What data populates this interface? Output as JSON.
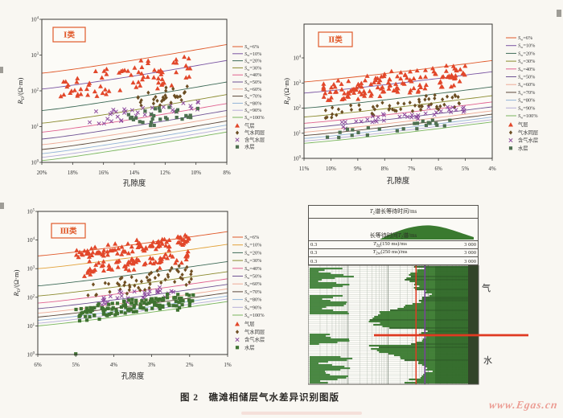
{
  "figure": {
    "caption": "图 2　礁滩相储层气水差异识别图版",
    "watermark": "www.Egas.cn",
    "paper_color": "#f9f7f2",
    "accent_color": "#e0592a"
  },
  "chart_data": [
    {
      "type": "scatter",
      "panel": "I",
      "class_label": "Ⅰ类",
      "x_label": "孔隙度",
      "y_label": "RD/(Ω·m)",
      "x_ticks": [
        "20%",
        "18%",
        "16%",
        "14%",
        "12%",
        "10%",
        "8%"
      ],
      "x_left_pct": 20,
      "x_right_pct": 8,
      "y_tick_exponents": [
        0,
        1,
        2,
        3,
        4
      ],
      "y_axis_type": "log",
      "model": {
        "base_log_r": 0.05,
        "rise_log": 0.8,
        "saturation_exponent": 2,
        "curvature": 1.12
      },
      "sw_curves": [
        {
          "sw": 6,
          "label": "Sw=6%",
          "color": "#e0592a"
        },
        {
          "sw": 10,
          "label": "Sw=10%",
          "color": "#7a55a2"
        },
        {
          "sw": 20,
          "label": "Sw=20%",
          "color": "#3f6b58"
        },
        {
          "sw": 30,
          "label": "Sw=30%",
          "color": "#8a8a2e"
        },
        {
          "sw": 40,
          "label": "Sw=40%",
          "color": "#e0618f"
        },
        {
          "sw": 50,
          "label": "Sw=50%",
          "color": "#6f5394"
        },
        {
          "sw": 60,
          "label": "Sw=60%",
          "color": "#edaa96"
        },
        {
          "sw": 70,
          "label": "Sw=70%",
          "color": "#5a473a"
        },
        {
          "sw": 80,
          "label": "Sw=80%",
          "color": "#92b4d8"
        },
        {
          "sw": 90,
          "label": "Sw=90%",
          "color": "#b5add8"
        },
        {
          "sw": 100,
          "label": "Sw=100%",
          "color": "#79b65e"
        }
      ],
      "clusters": [
        {
          "label": "气层",
          "marker": "triangle",
          "color": "#e2472a",
          "count": 78,
          "phi_range": [
            10.3,
            18.8
          ],
          "sw_eq_range": [
            7,
            16
          ]
        },
        {
          "label": "气水同层",
          "marker": "diamond",
          "color": "#6b4e23",
          "count": 32,
          "phi_range": [
            10.0,
            13.9
          ],
          "sw_eq_range": [
            18,
            28
          ]
        },
        {
          "label": "含气水层",
          "marker": "cross",
          "color": "#8d4a9e",
          "count": 34,
          "phi_range": [
            9.8,
            16.9
          ],
          "sw_eq_range": [
            26,
            42
          ]
        },
        {
          "label": "水层",
          "marker": "square",
          "color": "#4e7050",
          "count": 30,
          "phi_range": [
            9.8,
            14.6
          ],
          "sw_eq_range": [
            32,
            52
          ]
        }
      ],
      "extra_points": []
    },
    {
      "type": "scatter",
      "panel": "II",
      "class_label": "Ⅱ类",
      "x_label": "孔隙度",
      "y_label": "RD/(Ω·m)",
      "x_ticks": [
        "11%",
        "10%",
        "9%",
        "8%",
        "7%",
        "6%",
        "5%",
        "4%"
      ],
      "x_left_pct": 11,
      "x_right_pct": 4,
      "y_tick_exponents": [
        0,
        1,
        2,
        3,
        4
      ],
      "y_axis_type": "log",
      "model": {
        "base_log_r": 0.6,
        "rise_log": 0.85,
        "saturation_exponent": 2,
        "curvature": 1.12
      },
      "sw_curves": [
        {
          "sw": 6,
          "label": "Sw=6%",
          "color": "#e0592a"
        },
        {
          "sw": 10,
          "label": "Sw=10%",
          "color": "#7a55a2"
        },
        {
          "sw": 20,
          "label": "Sw=20%",
          "color": "#3f6b58"
        },
        {
          "sw": 30,
          "label": "Sw=30%",
          "color": "#8a8a2e"
        },
        {
          "sw": 40,
          "label": "Sw=40%",
          "color": "#e0618f"
        },
        {
          "sw": 50,
          "label": "Sw=50%",
          "color": "#6f5394"
        },
        {
          "sw": 60,
          "label": "Sw=60%",
          "color": "#edaa96"
        },
        {
          "sw": 70,
          "label": "Sw=70%",
          "color": "#5a473a"
        },
        {
          "sw": 80,
          "label": "Sw=80%",
          "color": "#92b4d8"
        },
        {
          "sw": 90,
          "label": "Sw=90%",
          "color": "#b5add8"
        },
        {
          "sw": 100,
          "label": "Sw=100%",
          "color": "#79b65e"
        }
      ],
      "clusters": [
        {
          "label": "气层",
          "marker": "triangle",
          "color": "#e2472a",
          "count": 135,
          "phi_range": [
            5.0,
            10.3
          ],
          "sw_eq_range": [
            6,
            16
          ]
        },
        {
          "label": "气水同层",
          "marker": "diamond",
          "color": "#6b4e23",
          "count": 58,
          "phi_range": [
            5.2,
            10.2
          ],
          "sw_eq_range": [
            22,
            40
          ]
        },
        {
          "label": "含气水层",
          "marker": "cross",
          "color": "#8d4a9e",
          "count": 38,
          "phi_range": [
            5.0,
            9.6
          ],
          "sw_eq_range": [
            38,
            55
          ]
        },
        {
          "label": "水层",
          "marker": "square",
          "color": "#4e7050",
          "count": 24,
          "phi_range": [
            5.5,
            10.2
          ],
          "sw_eq_range": [
            65,
            95
          ]
        }
      ],
      "extra_points": []
    },
    {
      "type": "scatter",
      "panel": "III",
      "class_label": "Ⅲ类",
      "x_label": "孔隙度",
      "y_label": "RD/(Ω·m)",
      "x_ticks": [
        "6%",
        "5%",
        "4%",
        "3%",
        "2%",
        "1%"
      ],
      "x_left_pct": 6,
      "x_right_pct": 1,
      "y_tick_exponents": [
        0,
        1,
        2,
        3,
        4,
        5
      ],
      "y_axis_type": "log",
      "model": {
        "base_log_r": 1.0,
        "rise_log": 0.85,
        "saturation_exponent": 2,
        "curvature": 1.12
      },
      "sw_curves": [
        {
          "sw": 6,
          "label": "Sw=6%",
          "color": "#e0592a"
        },
        {
          "sw": 10,
          "label": "Sw=10%",
          "color": "#e2a23a"
        },
        {
          "sw": 20,
          "label": "Sw=20%",
          "color": "#3f6b58"
        },
        {
          "sw": 30,
          "label": "Sw=30%",
          "color": "#8a8a2e"
        },
        {
          "sw": 40,
          "label": "Sw=40%",
          "color": "#e0618f"
        },
        {
          "sw": 50,
          "label": "Sw=50%",
          "color": "#6f5394"
        },
        {
          "sw": 60,
          "label": "Sw=60%",
          "color": "#edaa96"
        },
        {
          "sw": 70,
          "label": "Sw=70%",
          "color": "#5a473a"
        },
        {
          "sw": 80,
          "label": "Sw=80%",
          "color": "#92b4d8"
        },
        {
          "sw": 90,
          "label": "Sw=90%",
          "color": "#b5add8"
        },
        {
          "sw": 100,
          "label": "Sw=100%",
          "color": "#79b65e"
        }
      ],
      "clusters": [
        {
          "label": "气层",
          "marker": "triangle",
          "color": "#e2472a",
          "count": 95,
          "phi_range": [
            2.0,
            5.1
          ],
          "sw_eq_range": [
            5.5,
            8
          ]
        },
        {
          "label": "气层",
          "marker": "triangle",
          "color": "#e2472a",
          "count": 70,
          "phi_range": [
            2.0,
            4.9
          ],
          "sw_eq_range": [
            10,
            16
          ],
          "legend_skip": true
        },
        {
          "label": "气水同层",
          "marker": "diamond",
          "color": "#6f4f23",
          "count": 55,
          "phi_range": [
            1.9,
            4.7
          ],
          "sw_eq_range": [
            20,
            40
          ]
        },
        {
          "label": "含气水层",
          "marker": "cross",
          "color": "#8d4a9e",
          "count": 30,
          "phi_range": [
            2.2,
            4.6
          ],
          "sw_eq_range": [
            38,
            58
          ]
        },
        {
          "label": "水层",
          "marker": "square",
          "color": "#3f7331",
          "count": 135,
          "phi_range": [
            1.9,
            5.0
          ],
          "sw_eq_range": [
            55,
            95
          ]
        }
      ],
      "extra_points": [
        {
          "marker": "square",
          "color": "#3f7331",
          "phi": 5.0,
          "log_r": 0.02
        }
      ]
    },
    {
      "type": "log-track",
      "panel": "NMR",
      "header": {
        "row1": "T2谱长等待时间/ms",
        "row2": "长等待时间T2谱/ms",
        "scale_rows": [
          {
            "min": "0.3",
            "label": "T2g(150 ms)/ms",
            "max": "3 000"
          },
          {
            "min": "0.3",
            "label": "T2w(250 ms)/ms",
            "max": "3 000"
          },
          {
            "min": "0.3",
            "label": "",
            "max": "3 000"
          }
        ]
      },
      "x_scale": {
        "min_ms": 0.3,
        "max_ms": 3000,
        "decades": 4
      },
      "cutoff_lines": [
        {
          "name": "T2g",
          "value_ms": 150,
          "color": "#e03a22"
        },
        {
          "name": "T2w",
          "value_ms": 250,
          "color": "#7b3fa0"
        }
      ],
      "zone_divider_color": "#e03a22",
      "zones": {
        "gas": "气",
        "water": "水"
      },
      "spectrum_color": "#3a7a2f"
    }
  ]
}
